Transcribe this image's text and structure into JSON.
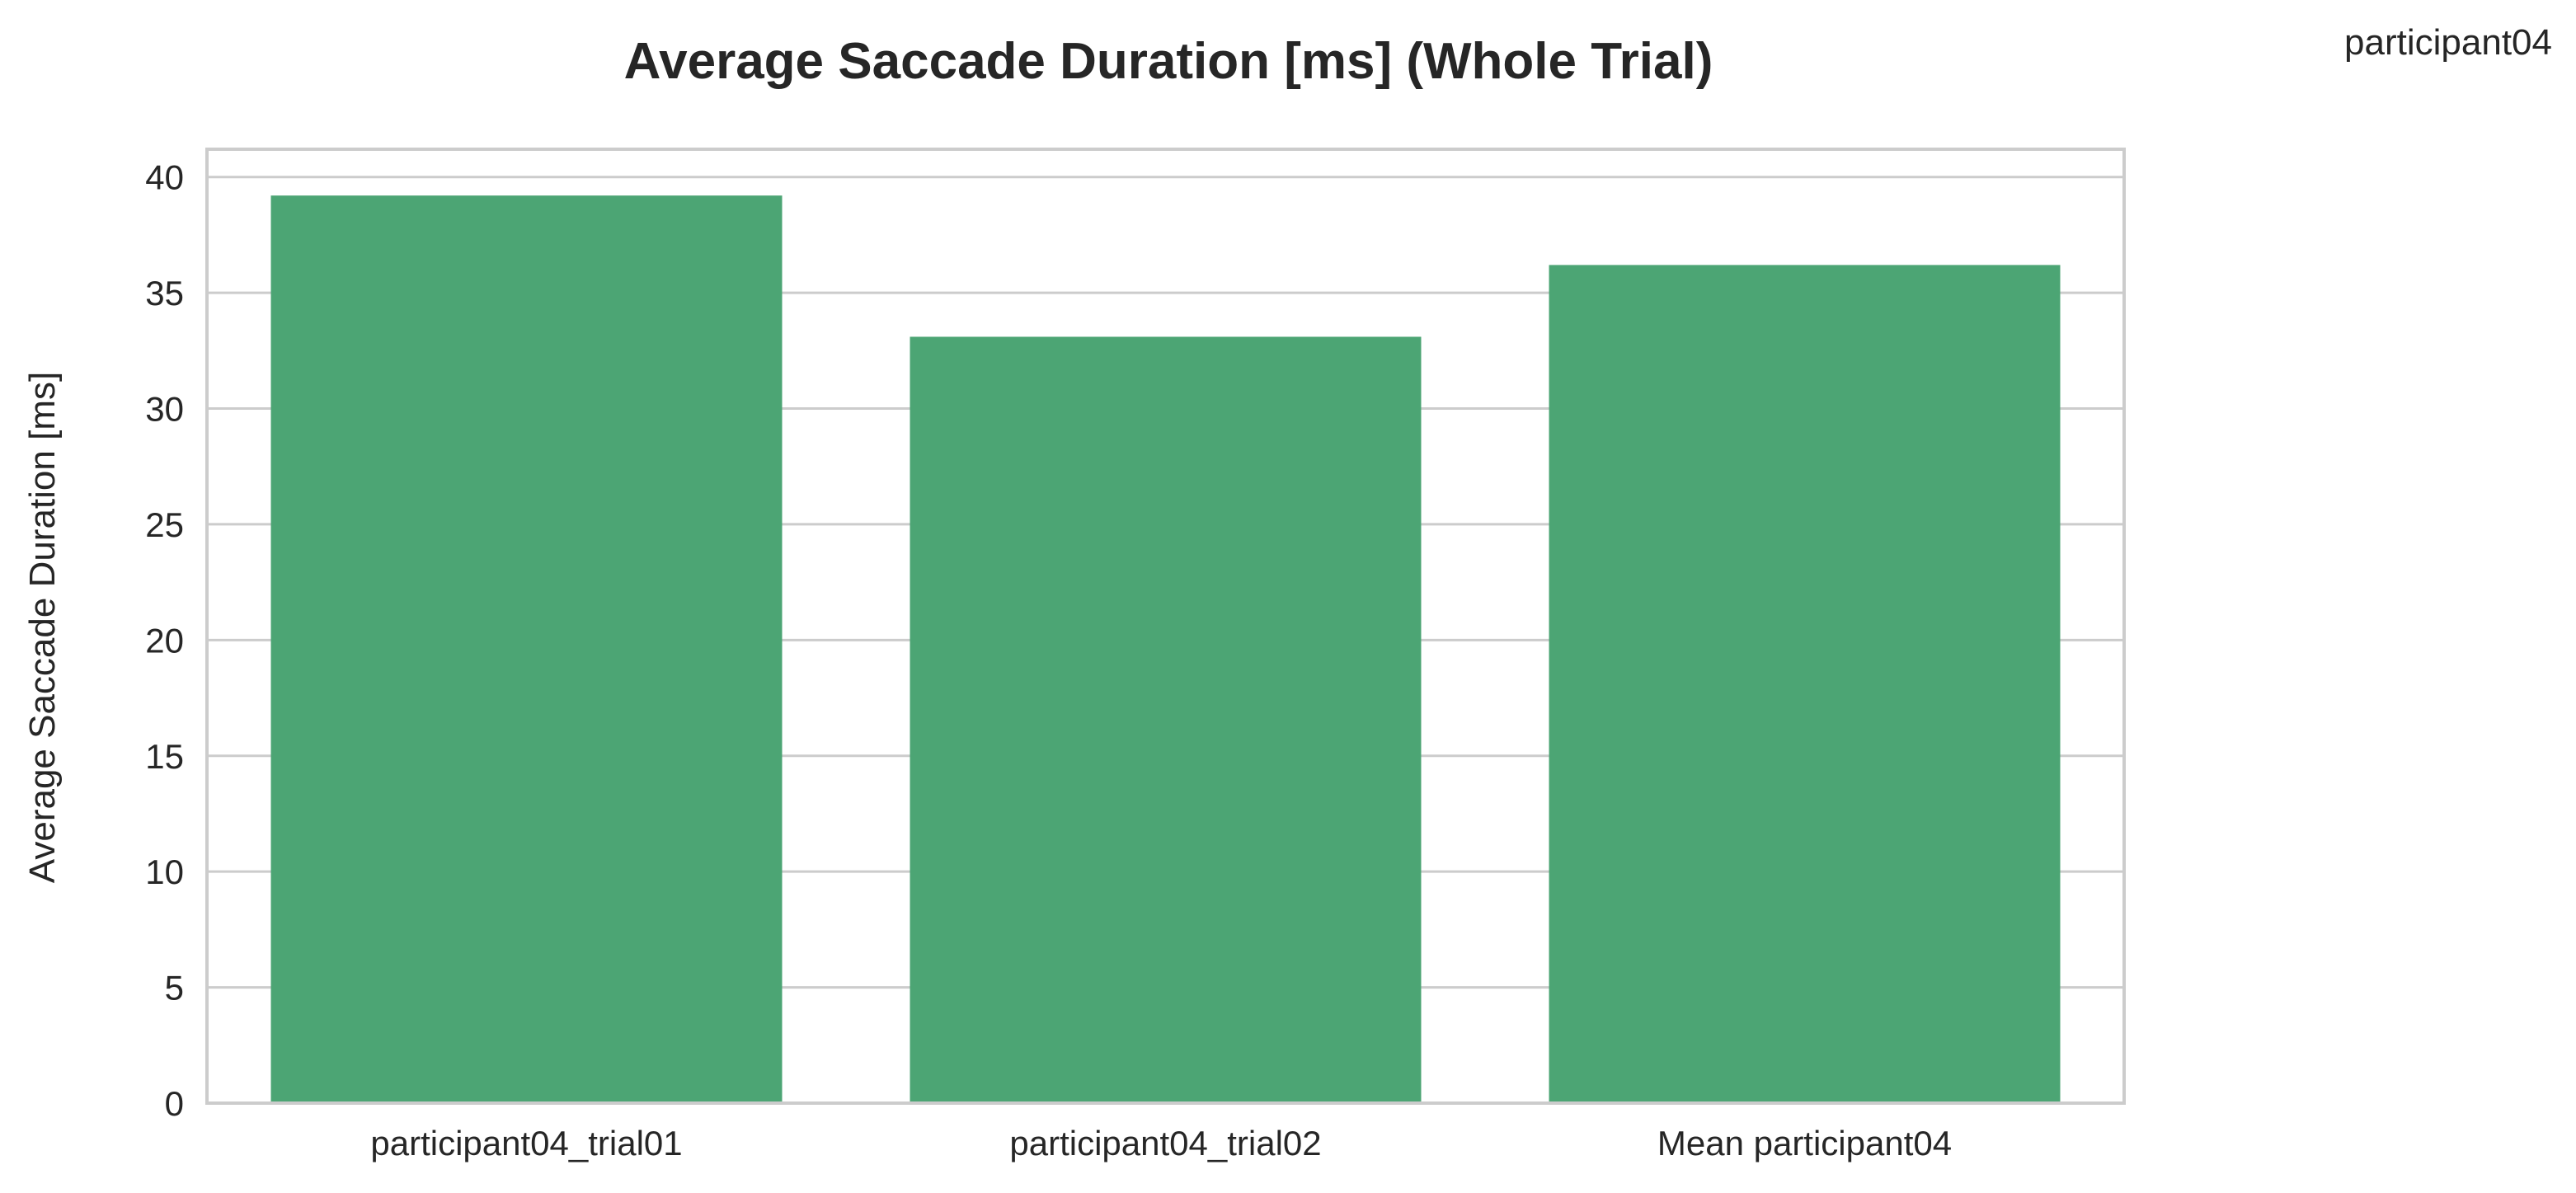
{
  "corner_label": "participant04",
  "chart_data": {
    "type": "bar",
    "title": "Average Saccade Duration [ms] (Whole Trial)",
    "xlabel": "",
    "ylabel": "Average Saccade Duration [ms]",
    "categories": [
      "participant04_trial01",
      "participant04_trial02",
      "Mean participant04"
    ],
    "values": [
      39.2,
      33.1,
      36.2
    ],
    "ylim": [
      0,
      41.2
    ],
    "yticks": [
      0,
      5,
      10,
      15,
      20,
      25,
      30,
      35,
      40
    ],
    "bar_color": "#4ca574",
    "grid": true,
    "legend": "none"
  }
}
